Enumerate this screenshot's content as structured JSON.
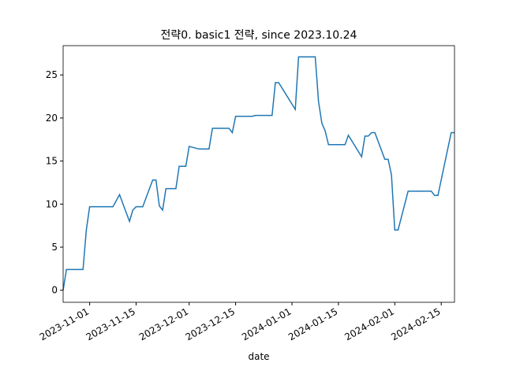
{
  "chart_data": {
    "type": "line",
    "title": "전략0. basic1 전략, since 2023.10.24",
    "x_label": "date",
    "x": [
      "2023-10-24",
      "2023-10-25",
      "2023-10-30",
      "2023-10-31",
      "2023-11-01",
      "2023-11-08",
      "2023-11-10",
      "2023-11-13",
      "2023-11-14",
      "2023-11-15",
      "2023-11-17",
      "2023-11-20",
      "2023-11-21",
      "2023-11-22",
      "2023-11-23",
      "2023-11-24",
      "2023-11-27",
      "2023-11-28",
      "2023-11-30",
      "2023-12-01",
      "2023-12-04",
      "2023-12-07",
      "2023-12-08",
      "2023-12-13",
      "2023-12-14",
      "2023-12-15",
      "2023-12-20",
      "2023-12-21",
      "2023-12-26",
      "2023-12-27",
      "2023-12-28",
      "2024-01-02",
      "2024-01-03",
      "2024-01-08",
      "2024-01-09",
      "2024-01-10",
      "2024-01-11",
      "2024-01-12",
      "2024-01-17",
      "2024-01-18",
      "2024-01-22",
      "2024-01-23",
      "2024-01-24",
      "2024-01-25",
      "2024-01-26",
      "2024-01-29",
      "2024-01-30",
      "2024-01-31",
      "2024-02-01",
      "2024-02-02",
      "2024-02-05",
      "2024-02-12",
      "2024-02-13",
      "2024-02-14",
      "2024-02-18",
      "2024-02-19"
    ],
    "series": [
      {
        "color": "#1f77b4",
        "values": [
          0,
          2.4,
          2.4,
          7.0,
          9.7,
          9.7,
          11.1,
          8.0,
          9.3,
          9.7,
          9.7,
          12.8,
          12.8,
          9.8,
          9.3,
          11.8,
          11.8,
          14.4,
          14.4,
          16.7,
          16.4,
          16.4,
          18.8,
          18.8,
          18.3,
          20.2,
          20.2,
          20.3,
          20.3,
          24.1,
          24.1,
          21.0,
          27.1,
          27.1,
          21.9,
          19.4,
          18.5,
          16.9,
          16.9,
          18.0,
          15.5,
          17.9,
          17.9,
          18.3,
          18.3,
          15.2,
          15.2,
          13.4,
          7.0,
          7.0,
          11.5,
          11.5,
          11.0,
          11.0,
          18.3,
          18.3
        ]
      }
    ],
    "xlim": [
      "2023-10-24",
      "2024-02-19"
    ],
    "xticks": [
      "2023-11-01",
      "2023-11-15",
      "2023-12-01",
      "2023-12-15",
      "2024-01-01",
      "2024-01-15",
      "2024-02-01",
      "2024-02-15"
    ],
    "ylim": [
      -1.4,
      28.4
    ],
    "yticks": [
      0,
      5,
      10,
      15,
      20,
      25
    ],
    "grid": false
  }
}
